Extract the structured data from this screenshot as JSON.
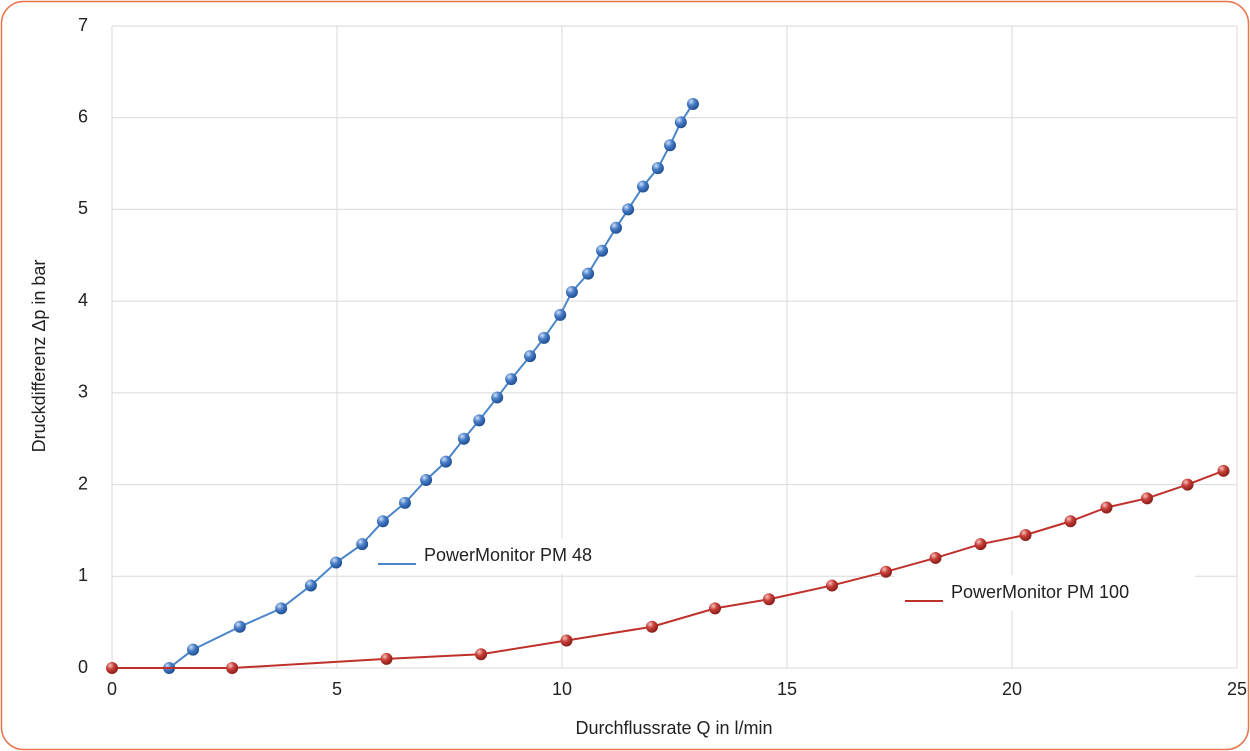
{
  "chart_data": {
    "type": "line",
    "xlabel": "Durchflussrate Q in l/min",
    "ylabel": "Druckdifferenz Δp in bar",
    "xlim": [
      0,
      25
    ],
    "ylim": [
      0,
      7
    ],
    "xticks": [
      0,
      5,
      10,
      15,
      20,
      25
    ],
    "yticks": [
      0,
      1,
      2,
      3,
      4,
      5,
      6,
      7
    ],
    "grid": true,
    "series": [
      {
        "name": "PowerMonitor PM 48",
        "color": "#4a86c8",
        "x": [
          1.27,
          1.8,
          2.84,
          3.76,
          4.42,
          4.98,
          5.56,
          6.02,
          6.51,
          6.98,
          7.42,
          7.82,
          8.16,
          8.56,
          8.87,
          9.29,
          9.6,
          9.96,
          10.22,
          10.58,
          10.89,
          11.2,
          11.47,
          11.8,
          12.13,
          12.4,
          12.64,
          12.91
        ],
        "values": [
          0,
          0.2,
          0.45,
          0.65,
          0.9,
          1.15,
          1.35,
          1.6,
          1.8,
          2.05,
          2.25,
          2.5,
          2.7,
          2.95,
          3.15,
          3.4,
          3.6,
          3.85,
          4.1,
          4.3,
          4.55,
          4.8,
          5.0,
          5.25,
          5.45,
          5.7,
          5.95,
          6.15
        ]
      },
      {
        "name": "PowerMonitor PM 100",
        "color": "#c0302b",
        "x": [
          0,
          2.67,
          6.1,
          8.2,
          10.1,
          12.0,
          13.4,
          14.6,
          16.0,
          17.2,
          18.3,
          19.3,
          20.3,
          21.3,
          22.1,
          23.0,
          23.9,
          24.7
        ],
        "values": [
          0,
          0,
          0.1,
          0.15,
          0.3,
          0.45,
          0.65,
          0.75,
          0.9,
          1.05,
          1.2,
          1.35,
          1.45,
          1.6,
          1.75,
          1.85,
          2.0,
          2.15
        ]
      }
    ]
  }
}
